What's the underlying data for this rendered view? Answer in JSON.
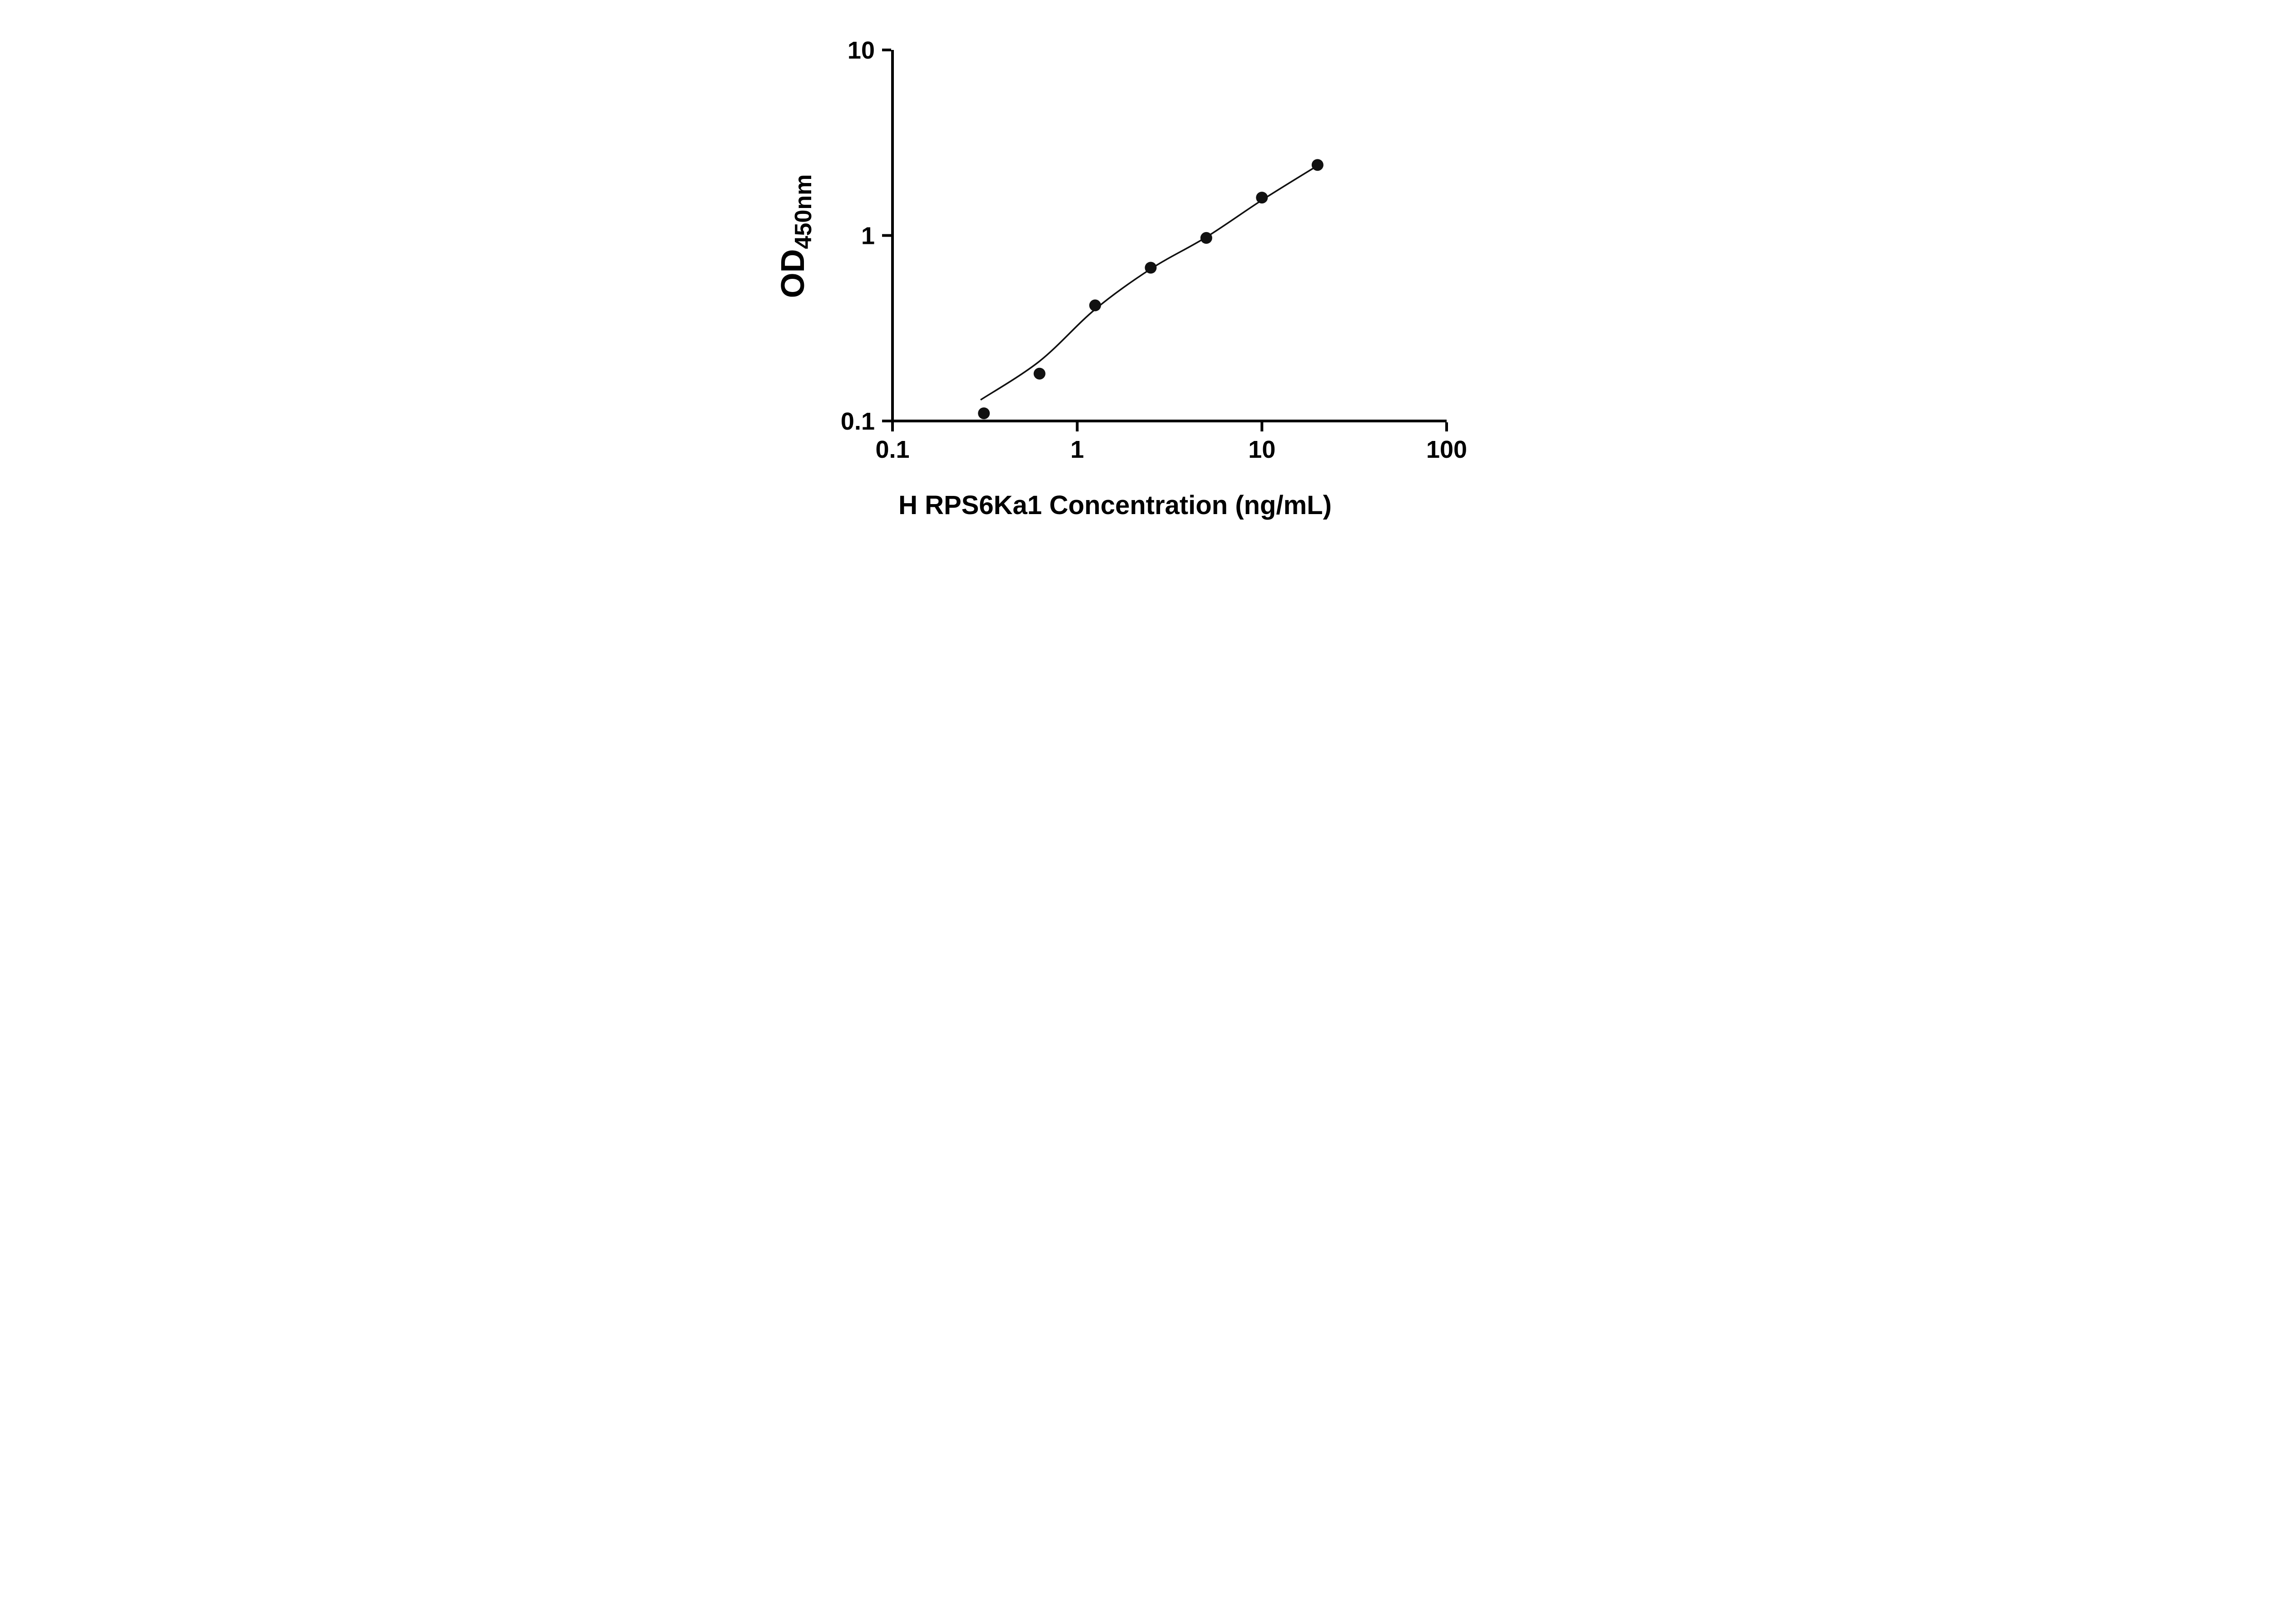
{
  "chart_data": {
    "type": "scatter",
    "title": "",
    "xlabel": "H RPS6Ka1 Concentration (ng/mL)",
    "ylabel_main": "OD",
    "ylabel_sub": "450nm",
    "x_scale": "log",
    "y_scale": "log",
    "xlim": [
      0.1,
      100
    ],
    "ylim": [
      0.1,
      10
    ],
    "grid": false,
    "legend": null,
    "axis_color": "#000000",
    "marker_color": "#111111",
    "line_color": "#111111",
    "x_ticks": [
      {
        "value": 0.1,
        "label": "0.1"
      },
      {
        "value": 1,
        "label": "1"
      },
      {
        "value": 10,
        "label": "10"
      },
      {
        "value": 100,
        "label": "100"
      }
    ],
    "y_ticks": [
      {
        "value": 0.1,
        "label": "0.1"
      },
      {
        "value": 1,
        "label": "1"
      },
      {
        "value": 10,
        "label": "10"
      }
    ],
    "points": [
      {
        "x": 0.3125,
        "y": 0.11
      },
      {
        "x": 0.625,
        "y": 0.18
      },
      {
        "x": 1.25,
        "y": 0.42
      },
      {
        "x": 2.5,
        "y": 0.67
      },
      {
        "x": 5,
        "y": 0.97
      },
      {
        "x": 10,
        "y": 1.6
      },
      {
        "x": 20,
        "y": 2.4
      }
    ],
    "fit_line": [
      {
        "x": 0.3,
        "y": 0.13
      },
      {
        "x": 0.625,
        "y": 0.21
      },
      {
        "x": 1.25,
        "y": 0.4
      },
      {
        "x": 2.5,
        "y": 0.66
      },
      {
        "x": 5,
        "y": 0.98
      },
      {
        "x": 10,
        "y": 1.55
      },
      {
        "x": 20,
        "y": 2.38
      }
    ]
  }
}
